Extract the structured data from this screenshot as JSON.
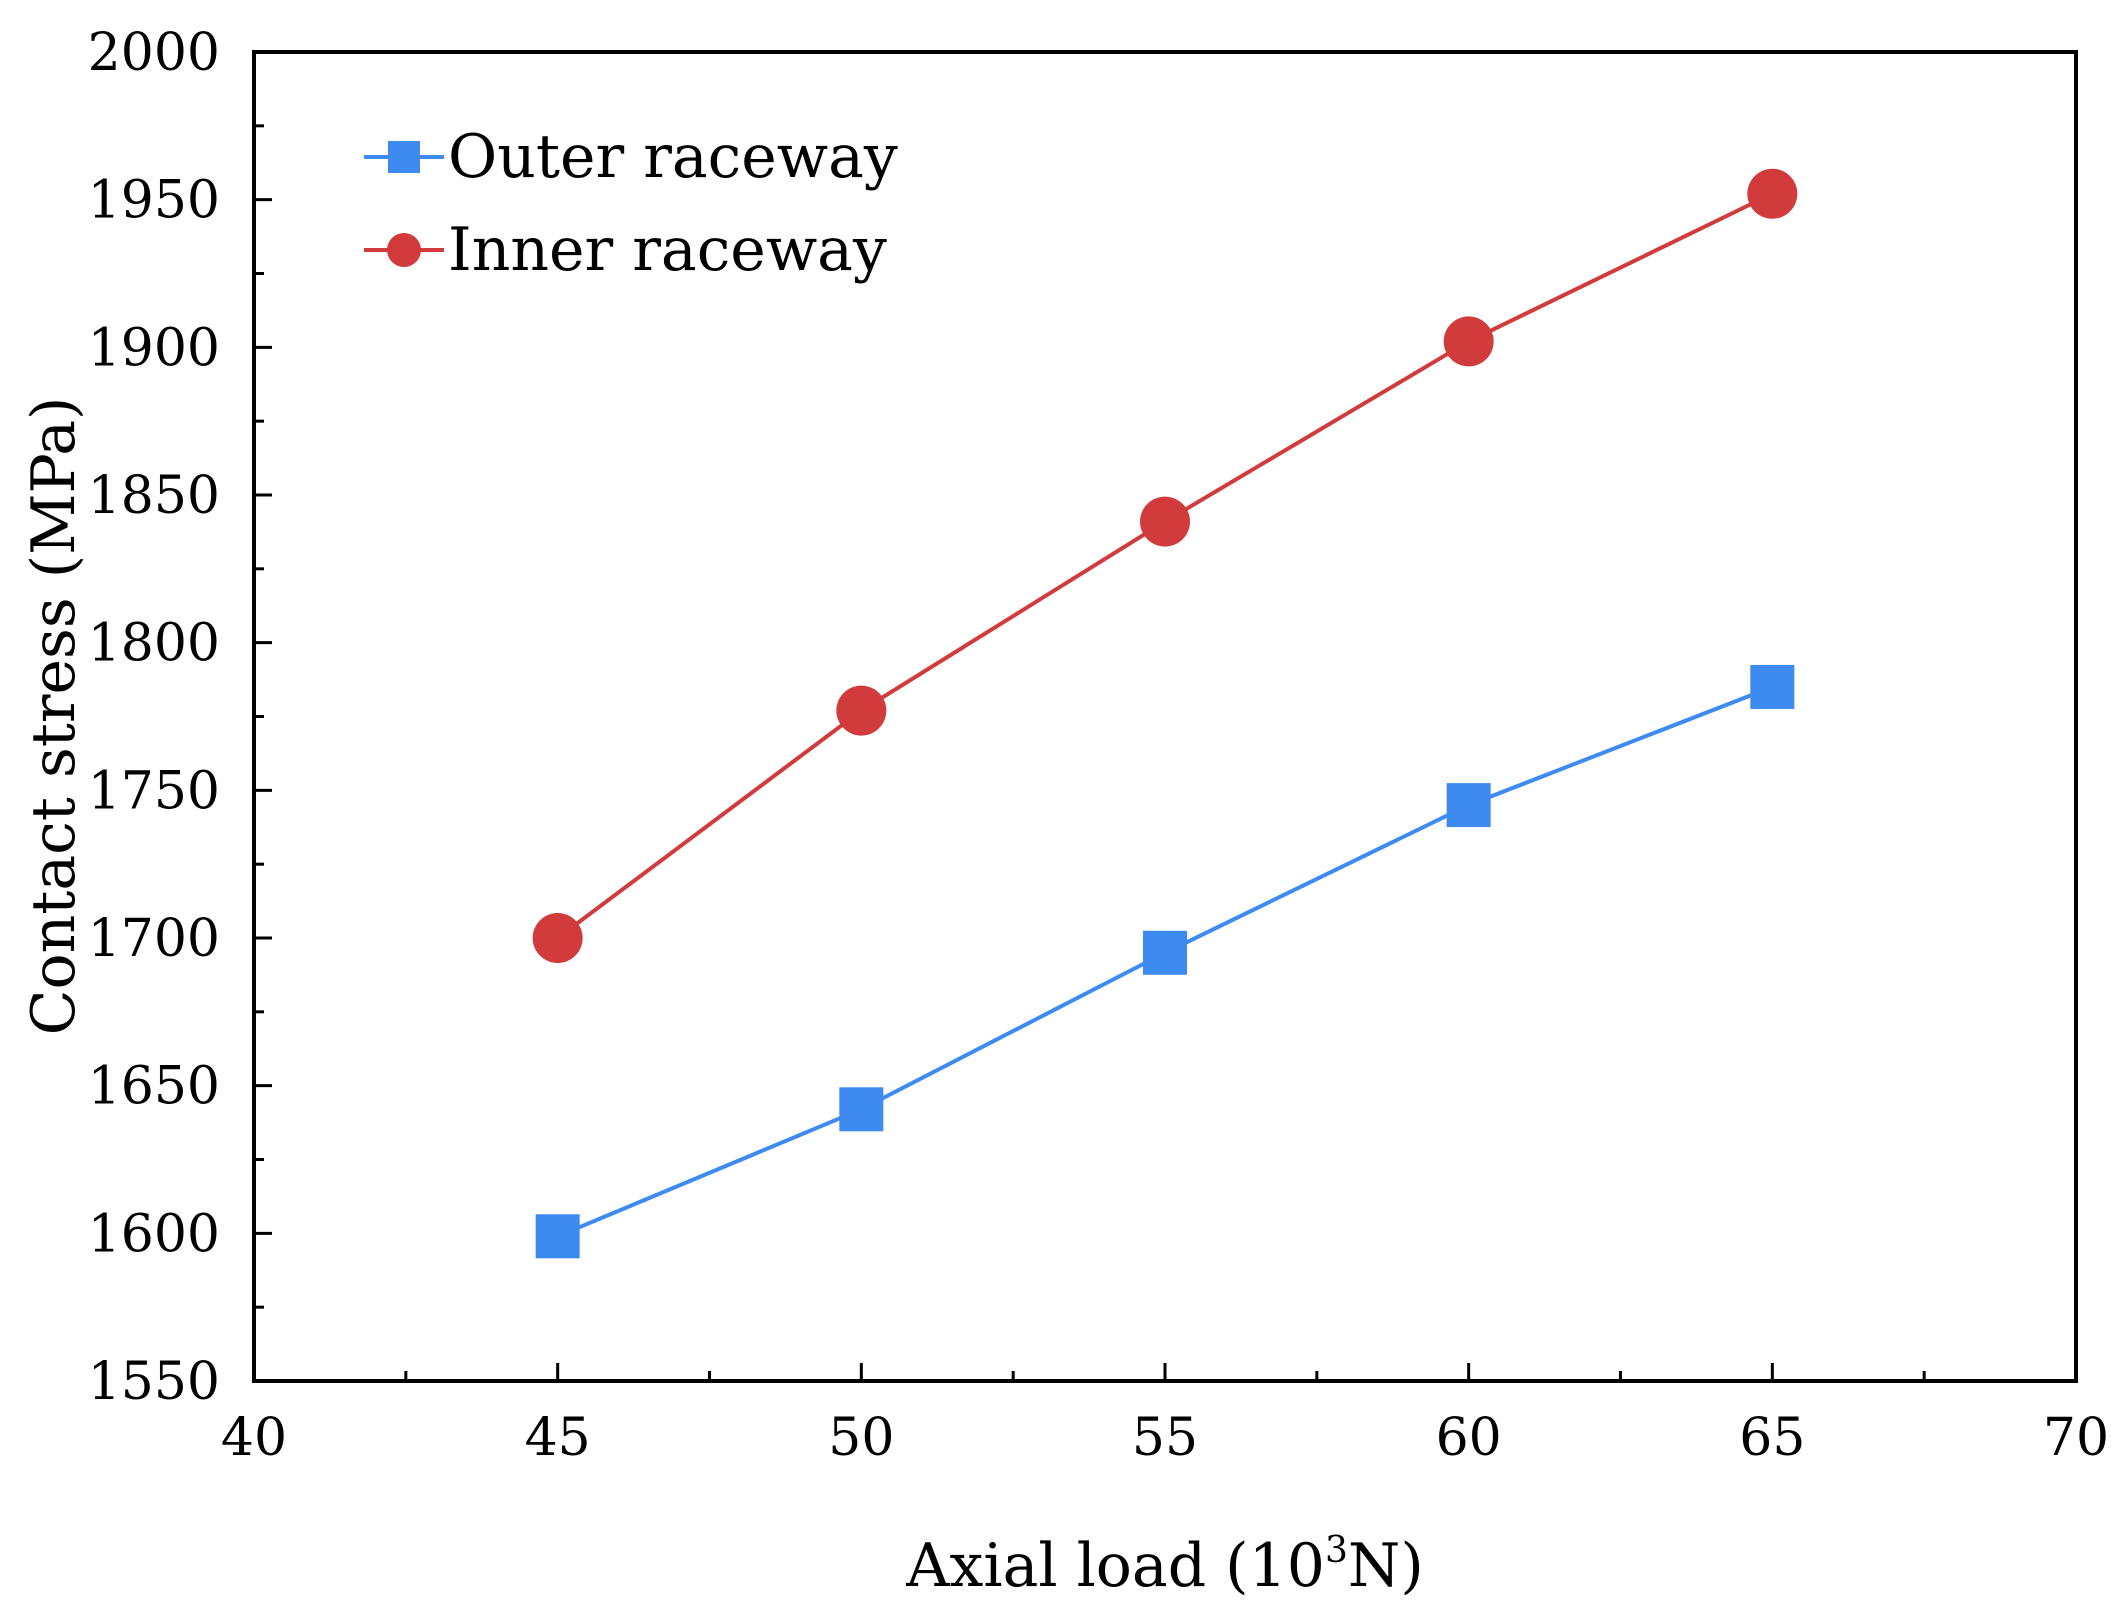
{
  "chart_data": {
    "type": "line",
    "title": "",
    "xlabel": "Axial load (10",
    "xlabel_sup": "3",
    "xlabel_suffix": "N)",
    "ylabel": "Contact stress (MPa)",
    "xlim": [
      40,
      70
    ],
    "ylim": [
      1550,
      2000
    ],
    "xticks": [
      40,
      45,
      50,
      55,
      60,
      65,
      70
    ],
    "yticks": [
      1550,
      1600,
      1650,
      1700,
      1750,
      1800,
      1850,
      1900,
      1950,
      2000
    ],
    "x": [
      45,
      50,
      55,
      60,
      65
    ],
    "legend_position": "top-left",
    "grid": false,
    "series": [
      {
        "name": "Outer raceway",
        "marker": "square",
        "color": "#3d8bf0",
        "values": [
          1599,
          1642,
          1695,
          1745,
          1785
        ]
      },
      {
        "name": "Inner raceway",
        "marker": "circle",
        "color": "#d13b3b",
        "values": [
          1700,
          1777,
          1841,
          1902,
          1952
        ]
      }
    ]
  }
}
